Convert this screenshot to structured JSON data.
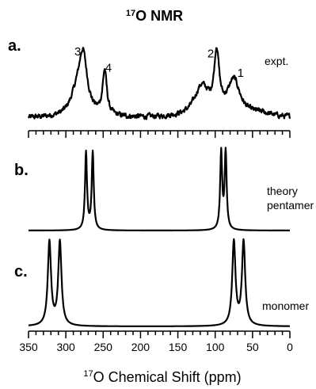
{
  "chart_data": {
    "type": "line",
    "title": {
      "sup": "17",
      "text": "O NMR"
    },
    "xlabel": {
      "sup": "17",
      "text": "O Chemical Shift (ppm)"
    },
    "xlim": [
      350,
      0
    ],
    "x_reversed": true,
    "ticks_major": [
      350,
      300,
      250,
      200,
      150,
      100,
      50,
      0
    ],
    "tick_labels": [
      "350",
      "300",
      "250",
      "200",
      "150",
      "100",
      "50",
      "0"
    ],
    "panels": [
      {
        "label": "a.",
        "note": [
          "expt."
        ],
        "series": {
          "name": "expt.",
          "baseline": 0.12,
          "noise": 0.035,
          "peaks": [
            {
              "center": 277,
              "height": 0.82,
              "width": 7
            },
            {
              "center": 286,
              "height": 0.25,
              "width": 10
            },
            {
              "center": 248,
              "height": 0.62,
              "width": 3.5
            },
            {
              "center": 118,
              "height": 0.42,
              "width": 12
            },
            {
              "center": 98,
              "height": 0.82,
              "width": 4
            },
            {
              "center": 75,
              "height": 0.5,
              "width": 10
            },
            {
              "center": 40,
              "height": 0.05,
              "width": 20
            }
          ]
        },
        "peak_labels": [
          {
            "text": "3",
            "x": 284,
            "y": 1.0
          },
          {
            "text": "4",
            "x": 243,
            "y": 0.77
          },
          {
            "text": "2",
            "x": 106,
            "y": 0.97
          },
          {
            "text": "1",
            "x": 66,
            "y": 0.7
          }
        ]
      },
      {
        "label": "b.",
        "note": [
          "theory",
          "pentamer"
        ],
        "series": {
          "name": "theory pentamer",
          "baseline": 0.0,
          "noise": 0,
          "peaks": [
            {
              "center": 273,
              "height": 1.0,
              "width": 1.6
            },
            {
              "center": 264,
              "height": 1.0,
              "width": 1.6
            },
            {
              "center": 92,
              "height": 1.0,
              "width": 1.6
            },
            {
              "center": 86,
              "height": 1.0,
              "width": 1.6
            }
          ]
        },
        "peak_labels": []
      },
      {
        "label": "c.",
        "note": [
          "monomer"
        ],
        "series": {
          "name": "monomer",
          "baseline": 0.0,
          "noise": 0,
          "peaks": [
            {
              "center": 322,
              "height": 1.0,
              "width": 2.6
            },
            {
              "center": 308,
              "height": 1.0,
              "width": 2.6
            },
            {
              "center": 75,
              "height": 1.0,
              "width": 2.6
            },
            {
              "center": 62,
              "height": 1.0,
              "width": 2.6
            }
          ]
        },
        "peak_labels": []
      }
    ]
  }
}
